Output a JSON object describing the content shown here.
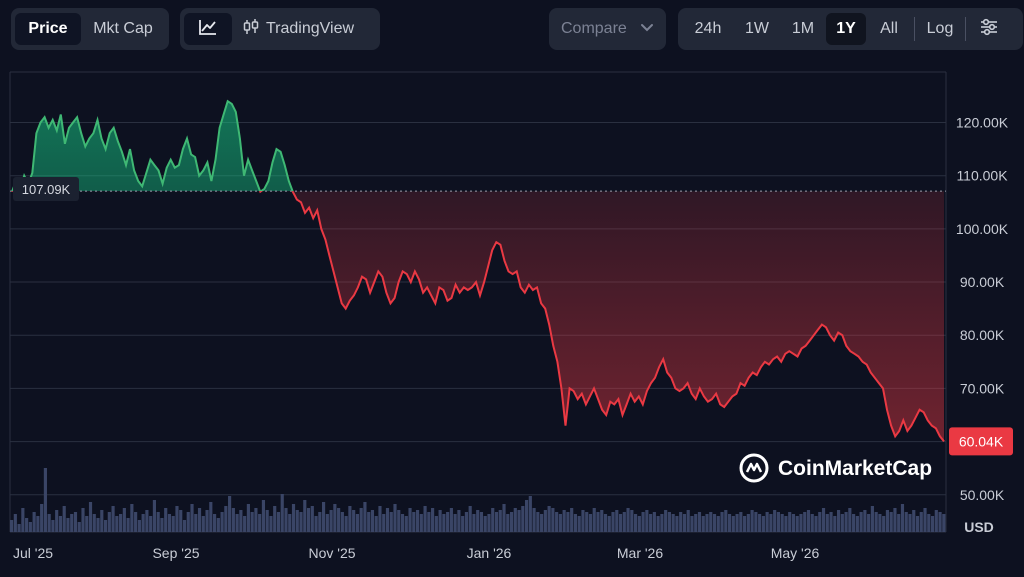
{
  "toolbar": {
    "metric_tabs": [
      {
        "label": "Price",
        "active": true
      },
      {
        "label": "Mkt Cap",
        "active": false
      }
    ],
    "chart_type": {
      "line_icon": "line-chart-icon",
      "tradingview_icon": "candlestick-icon",
      "tradingview_label": "TradingView"
    },
    "compare": {
      "label": "Compare",
      "icon": "chevron-down-icon"
    },
    "ranges": [
      {
        "label": "24h",
        "active": false
      },
      {
        "label": "1W",
        "active": false
      },
      {
        "label": "1M",
        "active": false
      },
      {
        "label": "1Y",
        "active": true
      },
      {
        "label": "All",
        "active": false
      }
    ],
    "log_label": "Log",
    "settings_icon": "sliders-icon"
  },
  "watermark": {
    "text": "CoinMarketCap",
    "icon": "coinmarketcap-logo-icon"
  },
  "colors": {
    "up": "#16c784",
    "down": "#ea3943",
    "background": "#0d1120",
    "grid": "#2a3040"
  },
  "chart_data": {
    "type": "line",
    "currency_label": "USD",
    "y_ticks": [
      "120.00K",
      "110.00K",
      "100.00K",
      "90.00K",
      "80.00K",
      "70.00K",
      "60.00K",
      "50.00K"
    ],
    "y_tick_values": [
      120000,
      110000,
      100000,
      90000,
      80000,
      70000,
      60000,
      50000
    ],
    "x_ticks": [
      "Jul '25",
      "Sep '25",
      "Nov '25",
      "Jan '26",
      "Mar '26",
      "May '26"
    ],
    "ylim": [
      43000,
      129500
    ],
    "baseline": {
      "value": 107090,
      "label": "107.09K"
    },
    "last_price": {
      "value": 60040,
      "label": "60.04K"
    },
    "grid": true,
    "series": [
      {
        "values": [
          107000,
          109000,
          107500,
          110000,
          108500,
          110500,
          118000,
          120000,
          121000,
          119000,
          120500,
          118500,
          121500,
          116000,
          119000,
          120000,
          121000,
          118000,
          115500,
          117000,
          118000,
          120500,
          117000,
          115000,
          118000,
          119000,
          116500,
          114500,
          112000,
          115000,
          111000,
          109000,
          108000,
          110500,
          113000,
          112000,
          111000,
          108500,
          111500,
          113000,
          111500,
          112000,
          115000,
          117000,
          114000,
          113500,
          110000,
          111000,
          112500,
          109000,
          113000,
          119000,
          121500,
          124000,
          123500,
          122000,
          117000,
          110000,
          113000,
          111000,
          109000,
          107000,
          107500,
          109000,
          112500,
          115000,
          114500,
          112000,
          109000,
          107000,
          105500,
          105000,
          103000,
          104000,
          102000,
          103500,
          100000,
          98000,
          95000,
          92000,
          89000,
          86000,
          85000,
          86500,
          87500,
          89000,
          91000,
          90500,
          88000,
          90000,
          92000,
          91000,
          88000,
          86000,
          87000,
          90000,
          92000,
          91500,
          90000,
          92000,
          90500,
          88000,
          89000,
          87500,
          86000,
          89000,
          88500,
          86500,
          87000,
          89500,
          88000,
          89000,
          88500,
          89000,
          90000,
          87500,
          90000,
          93000,
          96000,
          97500,
          97000,
          94000,
          92000,
          91500,
          92000,
          89000,
          88000,
          89500,
          88500,
          89000,
          86000,
          85000,
          82000,
          78000,
          75000,
          70000,
          63000,
          70000,
          69500,
          68000,
          69000,
          67000,
          68500,
          70000,
          68000,
          66000,
          65000,
          67500,
          67000,
          68000,
          65000,
          67000,
          69000,
          67500,
          68500,
          67000,
          69500,
          71000,
          72000,
          74000,
          75500,
          73000,
          72000,
          70000,
          69500,
          70000,
          71000,
          69000,
          68000,
          70000,
          68500,
          67500,
          68000,
          69000,
          67000,
          66500,
          67500,
          68500,
          69000,
          71000,
          70500,
          72000,
          73000,
          72500,
          74000,
          75000,
          74500,
          75500,
          76000,
          75000,
          76500,
          77000,
          76500,
          76000,
          77500,
          78000,
          79000,
          80000,
          81000,
          82000,
          81500,
          80000,
          79000,
          80500,
          80000,
          78000,
          77000,
          76500,
          76000,
          75000,
          74500,
          73000,
          72000,
          71000,
          70000,
          66000,
          63000,
          61000,
          62000,
          64000,
          62000,
          63000,
          64500,
          66000,
          65500,
          64000,
          63000,
          62500,
          61000,
          60040
        ]
      }
    ],
    "volume": {
      "label": "Volume",
      "values": [
        6,
        9,
        4,
        12,
        7,
        5,
        10,
        8,
        14,
        32,
        9,
        6,
        11,
        8,
        13,
        7,
        9,
        10,
        5,
        12,
        8,
        15,
        9,
        7,
        11,
        6,
        10,
        13,
        8,
        9,
        12,
        7,
        14,
        10,
        6,
        9,
        11,
        8,
        16,
        10,
        7,
        12,
        9,
        8,
        13,
        11,
        6,
        10,
        14,
        9,
        12,
        8,
        11,
        15,
        9,
        7,
        10,
        13,
        18,
        12,
        9,
        11,
        8,
        14,
        10,
        12,
        9,
        16,
        11,
        8,
        13,
        10,
        19,
        12,
        9,
        14,
        11,
        10,
        16,
        12,
        13,
        8,
        10,
        15,
        9,
        11,
        14,
        12,
        10,
        8,
        13,
        11,
        9,
        12,
        15,
        10,
        11,
        8,
        13,
        9,
        12,
        10,
        14,
        11,
        9,
        8,
        12,
        10,
        11,
        9,
        13,
        10,
        12,
        8,
        11,
        9,
        10,
        12,
        9,
        11,
        8,
        10,
        13,
        9,
        11,
        10,
        8,
        9,
        12,
        10,
        11,
        14,
        9,
        10,
        12,
        11,
        13,
        16,
        18,
        12,
        10,
        9,
        11,
        13,
        12,
        10,
        9,
        11,
        10,
        12,
        9,
        8,
        11,
        10,
        9,
        12,
        10,
        11,
        9,
        8,
        10,
        11,
        9,
        10,
        12,
        11,
        9,
        8,
        10,
        11,
        9,
        10,
        8,
        9,
        11,
        10,
        9,
        8,
        10,
        9,
        11,
        8,
        9,
        10,
        8,
        9,
        10,
        9,
        8,
        10,
        11,
        9,
        8,
        9,
        10,
        8,
        9,
        11,
        10,
        9,
        8,
        10,
        9,
        11,
        10,
        9,
        8,
        10,
        9,
        8,
        9,
        10,
        11,
        9,
        8,
        10,
        12,
        9,
        10,
        8,
        11,
        9,
        10,
        12,
        9,
        8,
        10,
        11,
        9,
        13,
        10,
        9,
        8,
        11,
        10,
        12,
        9,
        14,
        10,
        9,
        11,
        8,
        10,
        12,
        9,
        8,
        11,
        10,
        9
      ]
    }
  }
}
